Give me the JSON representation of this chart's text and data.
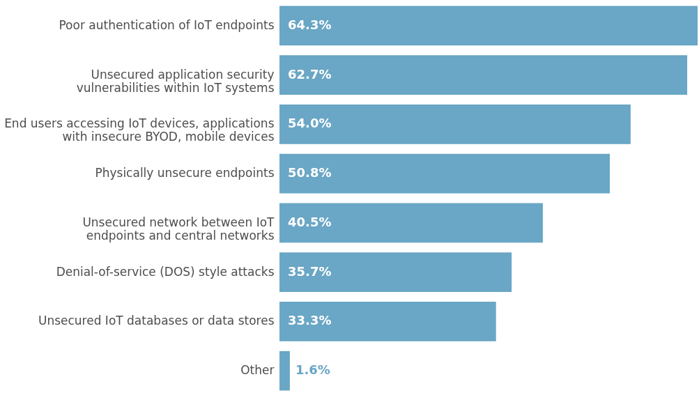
{
  "chart_data": {
    "type": "bar",
    "orientation": "horizontal",
    "categories": [
      "Poor authentication of IoT endpoints",
      "Unsecured application security\nvulnerabilities within IoT systems",
      "End users accessing IoT devices, applications\nwith insecure BYOD, mobile devices",
      "Physically unsecure endpoints",
      "Unsecured network between IoT\nendpoints and central networks",
      "Denial-of-service (DOS) style attacks",
      "Unsecured IoT databases or data stores",
      "Other"
    ],
    "values": [
      64.3,
      62.7,
      54.0,
      50.8,
      40.5,
      35.7,
      33.3,
      1.6
    ],
    "value_labels": [
      "64.3%",
      "62.7%",
      "54.0%",
      "50.8%",
      "40.5%",
      "35.7%",
      "33.3%",
      "1.6%"
    ],
    "color": "#6aa6c5",
    "grid": false
  }
}
